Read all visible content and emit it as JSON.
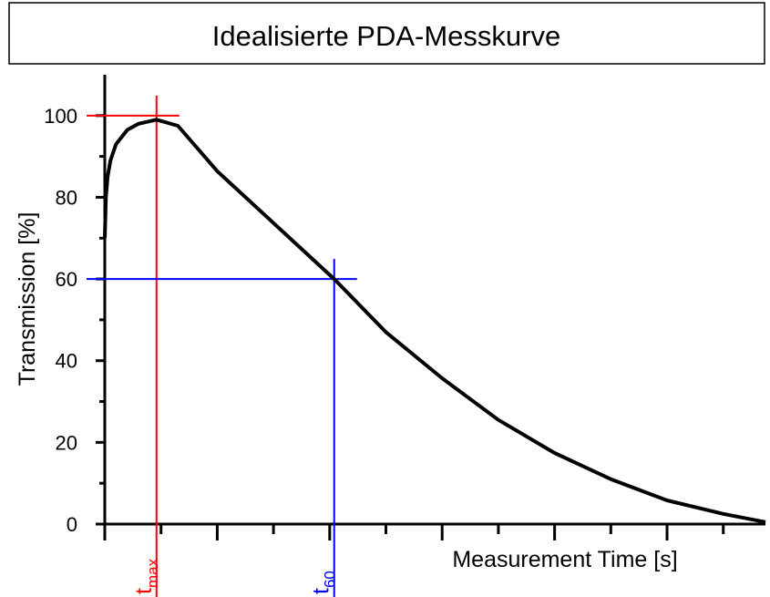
{
  "chart_data": {
    "type": "line",
    "title": "Idealisierte PDA-Messkurve",
    "x_label": "Measurement Time [s]",
    "y_label": "Transmission [%]",
    "x": [
      0,
      0.02,
      0.05,
      0.1,
      0.2,
      0.4,
      0.6,
      0.92,
      1.3,
      2,
      3,
      4.08,
      5,
      6,
      7,
      8,
      9,
      10,
      11,
      11.75
    ],
    "values": [
      70,
      80,
      85,
      89,
      93,
      96.5,
      98,
      99,
      97.5,
      86.4,
      73.7,
      60,
      47,
      35.7,
      25.5,
      17.4,
      11,
      5.8,
      2.5,
      0.5
    ],
    "color": "#000000",
    "xlim": [
      0,
      11.75
    ],
    "xticks": [
      0,
      2,
      4,
      6,
      8,
      10
    ],
    "xminorticks": [
      1,
      3,
      5,
      7,
      9,
      11
    ],
    "ylim": [
      0,
      110
    ],
    "yticks": [
      0,
      20,
      40,
      60,
      80,
      100
    ],
    "yminorticks": [
      10,
      30,
      50,
      70,
      90
    ],
    "markers": [
      {
        "label": "t",
        "sub": "max",
        "x": 0.92,
        "y": 100,
        "color": "#ff0000"
      },
      {
        "label": "t",
        "sub": "60",
        "x": 4.08,
        "y": 60,
        "color": "#0000ff"
      }
    ]
  }
}
